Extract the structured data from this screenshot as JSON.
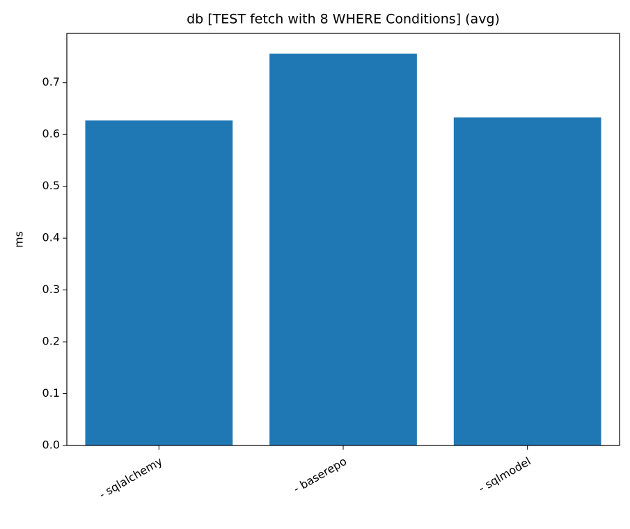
{
  "chart_data": {
    "type": "bar",
    "title": "db [TEST fetch with 8 WHERE Conditions] (avg)",
    "y_label": "ms",
    "categories": [
      "- sqlalchemy",
      "- baserepo",
      "- sqlmodel"
    ],
    "values": [
      0.627,
      0.756,
      0.633
    ],
    "color": "#1f77b4",
    "ylim": [
      0,
      0.795
    ],
    "yticks": [
      {
        "value": 0,
        "label": "0.0"
      },
      0.1,
      0.2,
      0.3,
      0.4,
      0.5,
      0.6,
      0.7
    ],
    "grid": false
  }
}
